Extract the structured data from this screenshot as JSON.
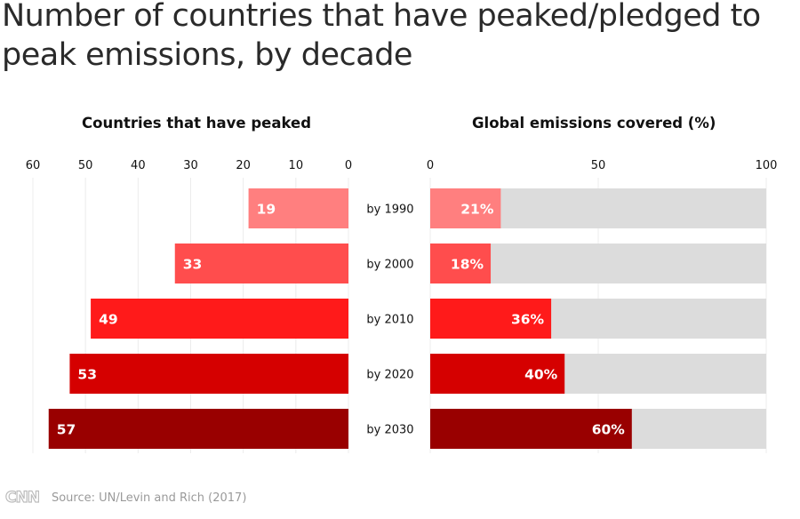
{
  "title": "Number of countries that have peaked/pledged to peak emissions, by decade",
  "source": "Source: UN/Levin and Rich (2017)",
  "logo_text": "CNN",
  "chart_data": [
    {
      "type": "bar",
      "orientation": "horizontal",
      "title": "Countries that have peaked",
      "categories": [
        "by 1990",
        "by 2000",
        "by 2010",
        "by 2020",
        "by 2030"
      ],
      "values": [
        19,
        33,
        49,
        53,
        57
      ],
      "data_labels": [
        "19",
        "33",
        "49",
        "53",
        "57"
      ],
      "xlim": [
        0,
        60
      ],
      "x_reversed": true,
      "ticks": [
        "60",
        "50",
        "40",
        "30",
        "20",
        "10",
        "0"
      ],
      "grid": true,
      "colors": [
        "#ff7f7f",
        "#ff4d4d",
        "#ff1a1a",
        "#d50000",
        "#990000"
      ]
    },
    {
      "type": "bar",
      "orientation": "horizontal",
      "title": "Global emissions covered (%)",
      "categories": [
        "by 1990",
        "by 2000",
        "by 2010",
        "by 2020",
        "by 2030"
      ],
      "values": [
        21,
        18,
        36,
        40,
        60
      ],
      "data_labels": [
        "21%",
        "18%",
        "36%",
        "40%",
        "60%"
      ],
      "xlim": [
        0,
        100
      ],
      "ticks": [
        "0",
        "50",
        "100"
      ],
      "grid": true,
      "background_bar_color": "#dcdcdc",
      "colors": [
        "#ff7f7f",
        "#ff4d4d",
        "#ff1a1a",
        "#d50000",
        "#990000"
      ]
    }
  ]
}
